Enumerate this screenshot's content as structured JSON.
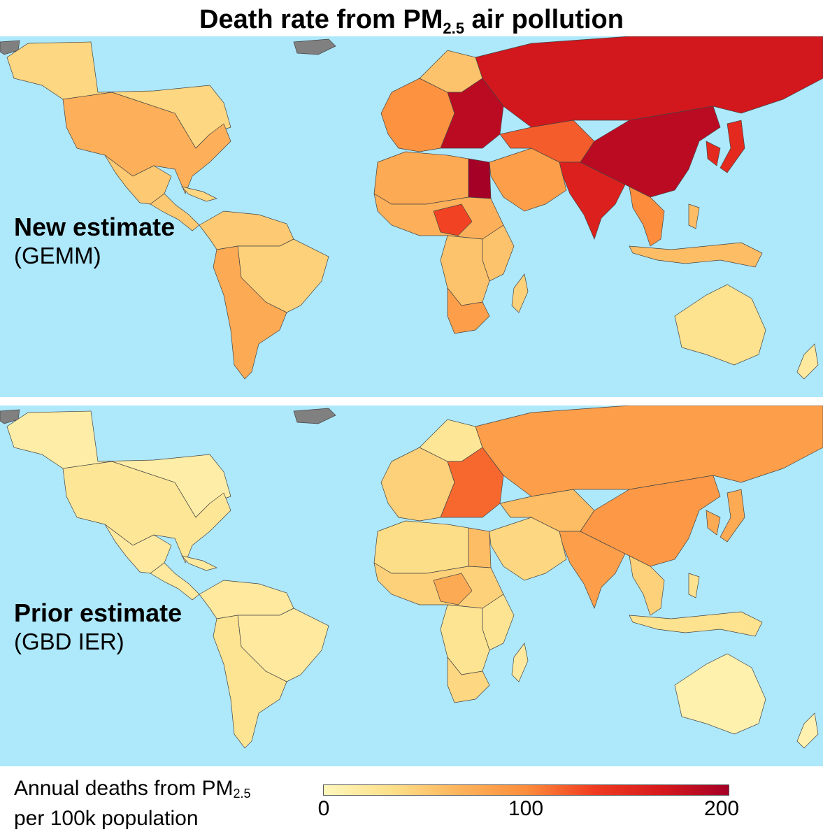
{
  "title": {
    "main": "Death rate from PM",
    "sub": "2.5",
    "end": " air pollution"
  },
  "panels": [
    {
      "id": "new",
      "label_bold": "New estimate",
      "label_sub": "(GEMM)"
    },
    {
      "id": "prior",
      "label_bold": "Prior estimate",
      "label_sub": "(GBD IER)"
    }
  ],
  "legend": {
    "line1": "Annual deaths from PM",
    "line1_sub": "2.5",
    "line2": "per 100k population",
    "ticks": [
      "0",
      "100",
      "200"
    ],
    "range": [
      0,
      200
    ]
  },
  "colors": {
    "ocean": "#aee8fb",
    "nodata": "#808080",
    "scale": [
      "#fff7bc",
      "#fde08a",
      "#fdb45c",
      "#fd8d3c",
      "#f03b20",
      "#d7191c",
      "#a50026"
    ]
  },
  "regions": {
    "new": {
      "canada": 40,
      "usa": 70,
      "mexico": 50,
      "central_america": 50,
      "caribbean": 40,
      "south_america_north": 50,
      "south_america_east": 45,
      "south_america_south": 75,
      "greenland": 0,
      "europe_west": 95,
      "scandinavia": 55,
      "europe_east": 185,
      "russia": 170,
      "north_africa": 75,
      "egypt": 200,
      "sahel": 70,
      "central_africa_hotspot": 130,
      "east_africa": 55,
      "southern_africa": 55,
      "south_africa": 85,
      "middle_east": 85,
      "central_asia": 120,
      "india": 160,
      "china": 185,
      "southeast_asia": 100,
      "indonesia": 60,
      "japan_korea": 150,
      "australia": 30,
      "new_zealand": 20,
      "madagascar": 45
    },
    "prior": {
      "canada": 15,
      "usa": 25,
      "mexico": 20,
      "central_america": 20,
      "caribbean": 20,
      "south_america_north": 20,
      "south_america_east": 20,
      "south_america_south": 28,
      "greenland": 0,
      "europe_west": 45,
      "scandinavia": 25,
      "europe_east": 115,
      "russia": 85,
      "north_africa": 35,
      "egypt": 60,
      "sahel": 45,
      "central_africa_hotspot": 75,
      "east_africa": 28,
      "southern_africa": 28,
      "south_africa": 40,
      "middle_east": 40,
      "central_asia": 60,
      "india": 85,
      "china": 90,
      "southeast_asia": 45,
      "indonesia": 30,
      "japan_korea": 75,
      "australia": 10,
      "new_zealand": 8,
      "madagascar": 20
    }
  }
}
